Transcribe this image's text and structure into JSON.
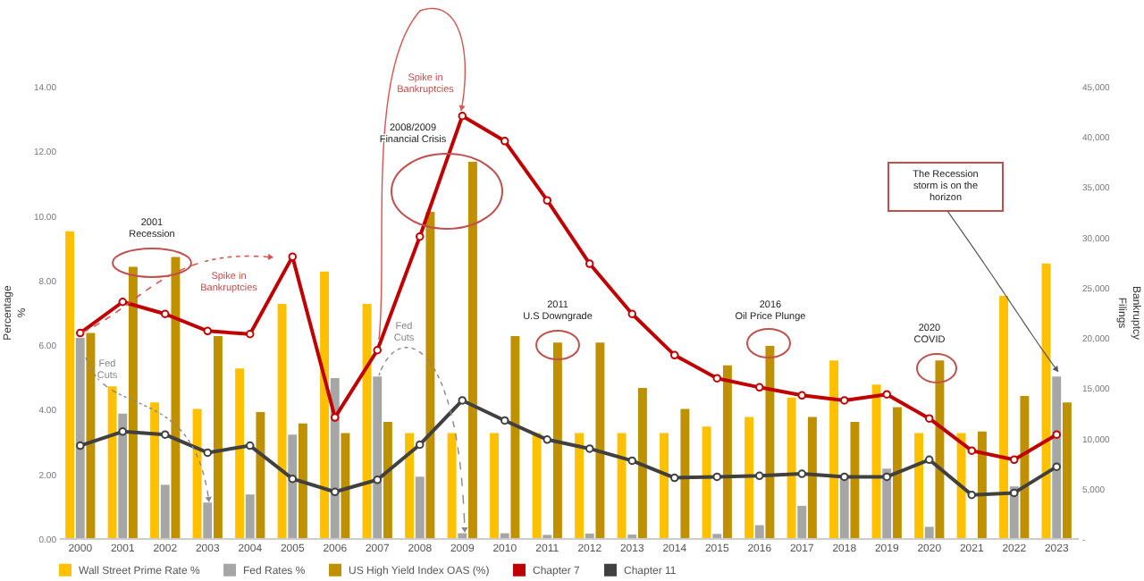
{
  "chart_data": {
    "type": "bar",
    "categories": [
      "2000",
      "2001",
      "2002",
      "2003",
      "2004",
      "2005",
      "2006",
      "2007",
      "2008",
      "2009",
      "2010",
      "2011",
      "2012",
      "2013",
      "2014",
      "2015",
      "2016",
      "2017",
      "2018",
      "2019",
      "2020",
      "2021",
      "2022",
      "2023"
    ],
    "series": [
      {
        "name": "Wall Street Prime Rate %",
        "color": "#ffc000",
        "values": [
          9.5,
          4.7,
          4.2,
          4.0,
          5.25,
          7.25,
          8.25,
          7.25,
          3.25,
          3.25,
          3.25,
          3.25,
          3.25,
          3.25,
          3.25,
          3.45,
          3.75,
          4.35,
          5.5,
          4.75,
          3.25,
          3.25,
          7.5,
          8.5
        ]
      },
      {
        "name": "Fed Rates %",
        "color": "#a6a6a6",
        "values": [
          6.2,
          3.85,
          1.65,
          1.1,
          1.35,
          3.2,
          4.95,
          5.0,
          1.9,
          0.15,
          0.15,
          0.1,
          0.14,
          0.11,
          null,
          0.13,
          0.4,
          1.0,
          1.85,
          2.15,
          0.35,
          null,
          1.6,
          5.0
        ]
      },
      {
        "name": "US High Yield Index OAS (%)",
        "color": "#bf9000",
        "values": [
          6.35,
          8.4,
          8.7,
          6.25,
          3.9,
          3.55,
          3.25,
          3.6,
          10.1,
          11.65,
          6.25,
          6.05,
          6.05,
          4.65,
          4.0,
          5.35,
          5.95,
          3.75,
          3.6,
          4.05,
          5.5,
          3.3,
          4.4,
          4.2
        ]
      },
      {
        "name": "Chapter 7",
        "type": "line",
        "axis": "y2",
        "color": "#c00000",
        "values": [
          20400,
          23500,
          22300,
          20600,
          20300,
          28000,
          12000,
          18700,
          30000,
          42000,
          39500,
          33600,
          27300,
          22300,
          18200,
          15900,
          15000,
          14200,
          13700,
          14300,
          11900,
          8700,
          7800,
          10300
        ]
      },
      {
        "name": "Chapter 11",
        "type": "line",
        "axis": "y2",
        "color": "#404040",
        "values": [
          9200,
          10600,
          10300,
          8500,
          9200,
          5900,
          4600,
          5800,
          9300,
          13700,
          11700,
          9800,
          8900,
          7700,
          6000,
          6100,
          6200,
          6400,
          6100,
          6100,
          7800,
          4300,
          4500,
          7100
        ]
      }
    ],
    "ylabel": "Percentage\n%",
    "y2label": "Bankruptcy\nFilings",
    "ylim": [
      0,
      14
    ],
    "yticks": [
      {
        "value": 0,
        "label": "0.00"
      },
      {
        "value": 2,
        "label": "2.00"
      },
      {
        "value": 4,
        "label": "4.00"
      },
      {
        "value": 6,
        "label": "6.00"
      },
      {
        "value": 8,
        "label": "8.00"
      },
      {
        "value": 10,
        "label": "10.00"
      },
      {
        "value": 12,
        "label": "12.00"
      },
      {
        "value": 14,
        "label": "14.00"
      }
    ],
    "y2lim": [
      0,
      45000
    ],
    "y2ticks": [
      {
        "value": 0,
        "label": "-"
      },
      {
        "value": 5000,
        "label": "5,000"
      },
      {
        "value": 10000,
        "label": "10,000"
      },
      {
        "value": 15000,
        "label": "15,000"
      },
      {
        "value": 20000,
        "label": "20,000"
      },
      {
        "value": 25000,
        "label": "25,000"
      },
      {
        "value": 30000,
        "label": "30,000"
      },
      {
        "value": 35000,
        "label": "35,000"
      },
      {
        "value": 40000,
        "label": "40,000"
      },
      {
        "value": 45000,
        "label": "45,000"
      }
    ],
    "marker": "circle",
    "legend": "bottom",
    "annotations": [
      "2001\nRecession",
      "Spike in\nBankruptcies",
      "Fed\nCuts",
      "Spike in\nBankruptcies",
      "2008/2009\nFinancial Crisis",
      "Fed\nCuts",
      "2011\nU.S Downgrade",
      "2016\nOil Price Plunge",
      "2020\nCOVID",
      "The Recession\nstorm is on the\nhorizon"
    ]
  }
}
